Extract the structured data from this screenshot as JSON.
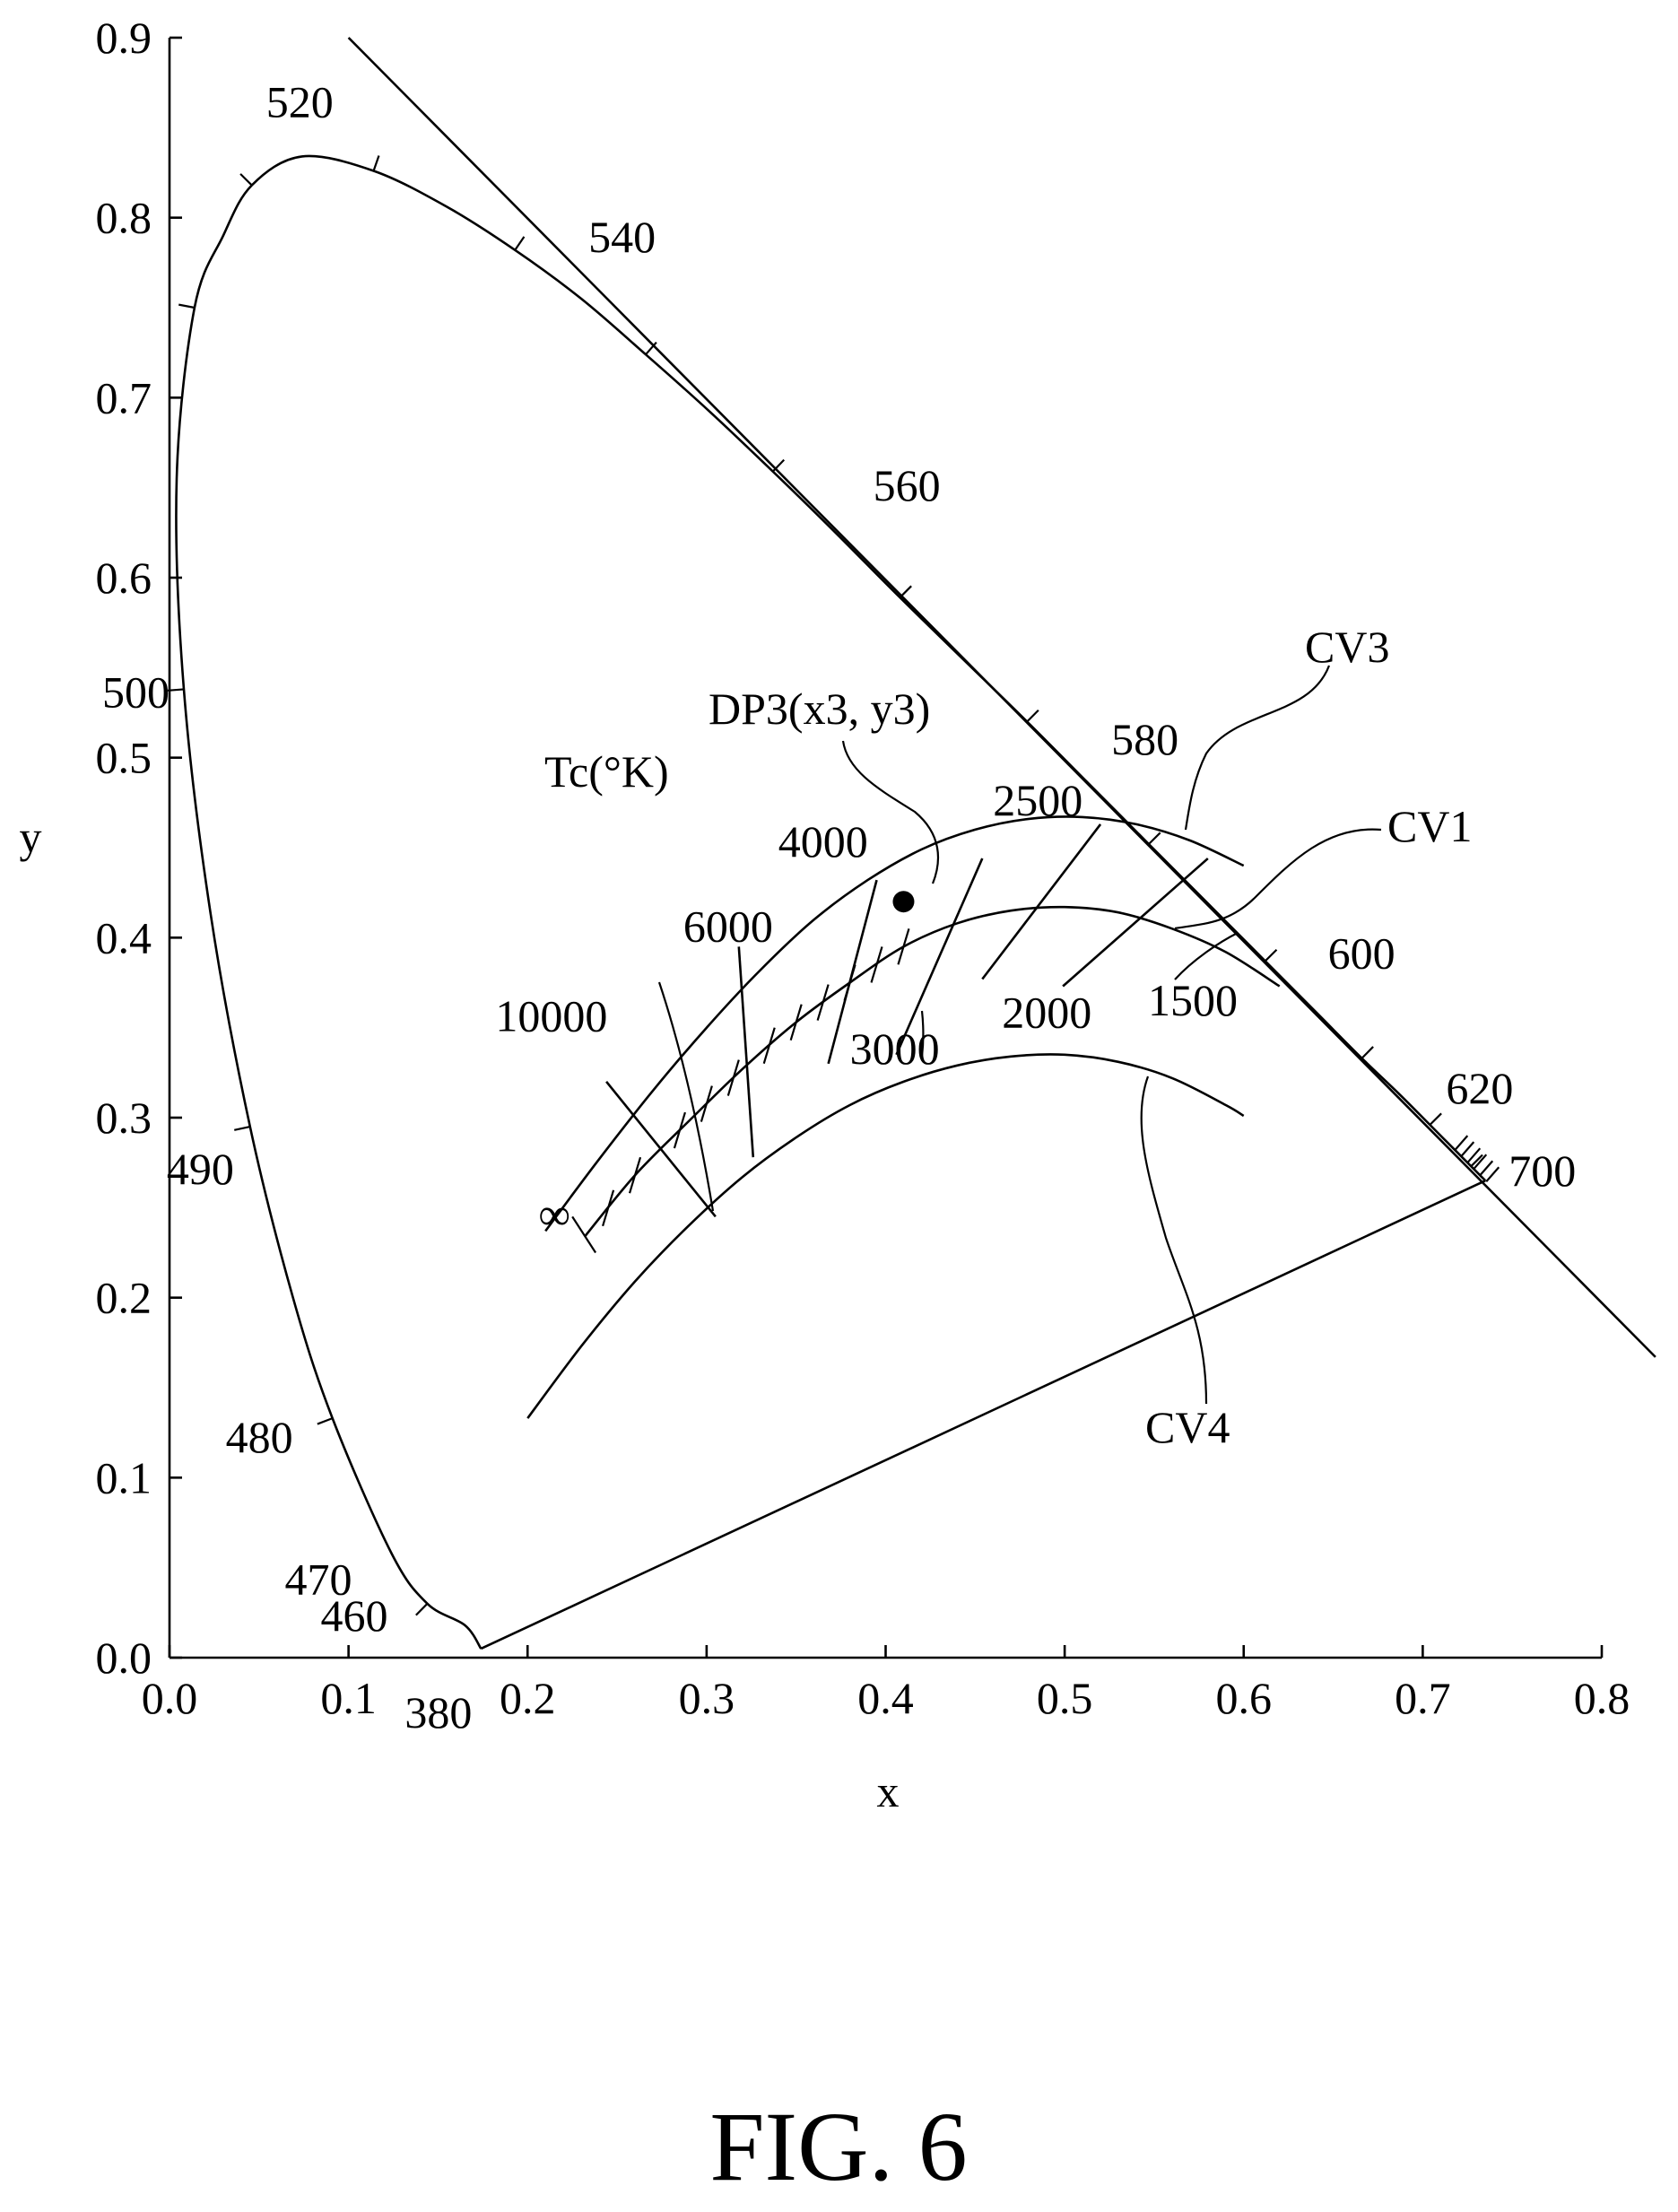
{
  "figure_caption": "FIG. 6",
  "chart_data": {
    "type": "scatter",
    "xlabel": "x",
    "ylabel": "y",
    "xlim": [
      0.0,
      0.8
    ],
    "ylim": [
      0.0,
      0.9
    ],
    "x_ticks": [
      "0.0",
      "0.1",
      "0.2",
      "0.3",
      "0.4",
      "0.5",
      "0.6",
      "0.7",
      "0.8"
    ],
    "y_ticks": [
      "0.0",
      "0.1",
      "0.2",
      "0.3",
      "0.4",
      "0.5",
      "0.6",
      "0.7",
      "0.8",
      "0.9"
    ],
    "grid": false,
    "spectral_locus": {
      "points": [
        [
          0.174,
          0.005
        ],
        [
          0.165,
          0.018
        ],
        [
          0.144,
          0.03
        ],
        [
          0.124,
          0.058
        ],
        [
          0.091,
          0.133
        ],
        [
          0.069,
          0.2
        ],
        [
          0.045,
          0.295
        ],
        [
          0.023,
          0.413
        ],
        [
          0.008,
          0.538
        ],
        [
          0.004,
          0.655
        ],
        [
          0.014,
          0.75
        ],
        [
          0.03,
          0.79
        ],
        [
          0.046,
          0.818
        ],
        [
          0.074,
          0.834
        ],
        [
          0.114,
          0.826
        ],
        [
          0.155,
          0.806
        ],
        [
          0.193,
          0.782
        ],
        [
          0.23,
          0.755
        ],
        [
          0.266,
          0.724
        ],
        [
          0.302,
          0.692
        ],
        [
          0.337,
          0.659
        ],
        [
          0.373,
          0.624
        ],
        [
          0.408,
          0.589
        ],
        [
          0.444,
          0.554
        ],
        [
          0.479,
          0.52
        ],
        [
          0.512,
          0.487
        ],
        [
          0.547,
          0.452
        ],
        [
          0.58,
          0.419
        ],
        [
          0.612,
          0.387
        ],
        [
          0.641,
          0.358
        ],
        [
          0.666,
          0.333
        ],
        [
          0.687,
          0.313
        ],
        [
          0.704,
          0.296
        ],
        [
          0.717,
          0.283
        ],
        [
          0.727,
          0.273
        ],
        [
          0.735,
          0.265
        ]
      ],
      "purple_line": [
        [
          0.174,
          0.005
        ],
        [
          0.735,
          0.265
        ]
      ],
      "wavelength_labels": [
        {
          "text": "380",
          "x": 0.174,
          "y": 0.005
        },
        {
          "text": "460",
          "x": 0.144,
          "y": 0.03
        },
        {
          "text": "470",
          "x": 0.124,
          "y": 0.058
        },
        {
          "text": "480",
          "x": 0.091,
          "y": 0.133
        },
        {
          "text": "490",
          "x": 0.045,
          "y": 0.295
        },
        {
          "text": "500",
          "x": 0.008,
          "y": 0.538
        },
        {
          "text": "520",
          "x": 0.074,
          "y": 0.834
        },
        {
          "text": "540",
          "x": 0.23,
          "y": 0.755
        },
        {
          "text": "560",
          "x": 0.373,
          "y": 0.624
        },
        {
          "text": "580",
          "x": 0.512,
          "y": 0.487
        },
        {
          "text": "600",
          "x": 0.627,
          "y": 0.372
        },
        {
          "text": "620",
          "x": 0.691,
          "y": 0.309
        },
        {
          "text": "700",
          "x": 0.735,
          "y": 0.265
        }
      ]
    },
    "reference_line": [
      [
        0.1,
        0.9
      ],
      [
        0.83,
        0.167
      ]
    ],
    "curves": [
      {
        "name": "CV1",
        "points": [
          [
            0.232,
            0.234
          ],
          [
            0.26,
            0.268
          ],
          [
            0.29,
            0.298
          ],
          [
            0.32,
            0.327
          ],
          [
            0.35,
            0.353
          ],
          [
            0.38,
            0.375
          ],
          [
            0.41,
            0.395
          ],
          [
            0.44,
            0.408
          ],
          [
            0.47,
            0.415
          ],
          [
            0.5,
            0.417
          ],
          [
            0.53,
            0.414
          ],
          [
            0.56,
            0.405
          ],
          [
            0.59,
            0.392
          ],
          [
            0.62,
            0.373
          ]
        ]
      },
      {
        "name": "CV3",
        "points": [
          [
            0.21,
            0.237
          ],
          [
            0.24,
            0.277
          ],
          [
            0.27,
            0.315
          ],
          [
            0.3,
            0.35
          ],
          [
            0.33,
            0.382
          ],
          [
            0.36,
            0.41
          ],
          [
            0.39,
            0.432
          ],
          [
            0.42,
            0.449
          ],
          [
            0.45,
            0.46
          ],
          [
            0.48,
            0.466
          ],
          [
            0.51,
            0.467
          ],
          [
            0.54,
            0.463
          ],
          [
            0.57,
            0.454
          ],
          [
            0.6,
            0.44
          ]
        ]
      },
      {
        "name": "CV4",
        "points": [
          [
            0.2,
            0.133
          ],
          [
            0.23,
            0.173
          ],
          [
            0.26,
            0.209
          ],
          [
            0.29,
            0.24
          ],
          [
            0.32,
            0.267
          ],
          [
            0.35,
            0.289
          ],
          [
            0.38,
            0.307
          ],
          [
            0.41,
            0.32
          ],
          [
            0.44,
            0.329
          ],
          [
            0.47,
            0.334
          ],
          [
            0.5,
            0.335
          ],
          [
            0.53,
            0.331
          ],
          [
            0.56,
            0.322
          ],
          [
            0.59,
            0.307
          ],
          [
            0.6,
            0.301
          ]
        ]
      }
    ],
    "isotherms": [
      {
        "label": "10000",
        "x1": 0.244,
        "y1": 0.32,
        "x2": 0.305,
        "y2": 0.245
      },
      {
        "label": "6000",
        "x1": 0.318,
        "y1": 0.395,
        "x2": 0.326,
        "y2": 0.278
      },
      {
        "label": "4000",
        "x1": 0.395,
        "y1": 0.432,
        "x2": 0.368,
        "y2": 0.33
      },
      {
        "label": "3000",
        "x1": 0.454,
        "y1": 0.444,
        "x2": 0.406,
        "y2": 0.335
      },
      {
        "label": "2500",
        "x1": 0.52,
        "y1": 0.463,
        "x2": 0.454,
        "y2": 0.377
      },
      {
        "label": "2000",
        "x1": 0.58,
        "y1": 0.444,
        "x2": 0.499,
        "y2": 0.373
      }
    ],
    "infinity_marker": {
      "label": "∞",
      "x": 0.22,
      "y": 0.247
    },
    "temperature_axis_label": "Tc(°K)",
    "point": {
      "label": "DP3(x3, y3)",
      "x": 0.41,
      "y": 0.42
    },
    "curve_labels": [
      "CV1",
      "CV3",
      "CV4"
    ],
    "extra_labels": [
      "1500"
    ]
  }
}
